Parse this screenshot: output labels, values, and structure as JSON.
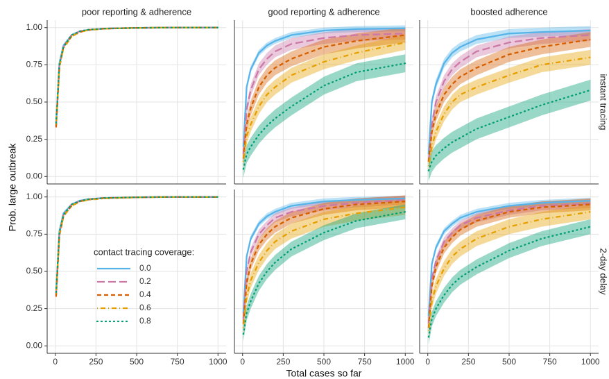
{
  "chart_data": [
    {
      "type": "line",
      "title": "poor reporting & adherence",
      "ylabel": "Prob. large outbreak",
      "x": [
        5,
        25,
        50,
        100,
        150,
        200,
        300,
        500,
        700,
        1000
      ],
      "xlim": [
        -50,
        1050
      ],
      "ylim": [
        -0.05,
        1.05
      ],
      "xticks": [
        0,
        250,
        500,
        750,
        1000
      ],
      "yticks": [
        {
          "value": 0,
          "label": "0.00"
        },
        0.25,
        {
          "value": 0.5,
          "label": "0.50"
        },
        0.75,
        {
          "value": 1,
          "label": "1.00"
        }
      ],
      "grid": true,
      "series": [
        {
          "color": "#56B4E9",
          "linestyle": "solid",
          "values": [
            0.35,
            0.76,
            0.88,
            0.95,
            0.975,
            0.985,
            0.993,
            0.998,
            1.0,
            1.0
          ]
        },
        {
          "color": "#CC79A7",
          "linestyle": "longdash",
          "values": [
            0.34,
            0.74,
            0.87,
            0.95,
            0.975,
            0.985,
            0.993,
            0.998,
            1.0,
            1.0
          ]
        },
        {
          "color": "#D55E00",
          "linestyle": "dashed",
          "values": [
            0.33,
            0.73,
            0.87,
            0.94,
            0.97,
            0.983,
            0.993,
            0.998,
            1.0,
            1.0
          ]
        },
        {
          "color": "#E69F00",
          "linestyle": "dotdash",
          "values": [
            0.35,
            0.74,
            0.86,
            0.94,
            0.97,
            0.983,
            0.992,
            0.998,
            1.0,
            1.0
          ]
        },
        {
          "color": "#009E73",
          "linestyle": "dotted",
          "values": [
            0.36,
            0.75,
            0.87,
            0.95,
            0.975,
            0.985,
            0.993,
            0.998,
            1.0,
            1.0
          ]
        }
      ]
    },
    {
      "type": "line",
      "title": "good reporting & adherence",
      "x": [
        5,
        25,
        50,
        100,
        150,
        200,
        300,
        500,
        700,
        1000
      ],
      "xlim": [
        -50,
        1050
      ],
      "ylim": [
        -0.05,
        1.05
      ],
      "xticks": [
        0,
        250,
        500,
        750,
        1000
      ],
      "yticks": [
        {
          "value": 0,
          "label": "0.00"
        },
        0.25,
        {
          "value": 0.5,
          "label": "0.50"
        },
        0.75,
        {
          "value": 1,
          "label": "1.00"
        }
      ],
      "grid": true,
      "series": [
        {
          "color": "#56B4E9",
          "linestyle": "solid",
          "error": 0.02,
          "values": [
            0.2,
            0.6,
            0.72,
            0.83,
            0.88,
            0.91,
            0.95,
            0.98,
            0.99,
            0.995
          ]
        },
        {
          "color": "#CC79A7",
          "linestyle": "longdash",
          "error": 0.04,
          "values": [
            0.15,
            0.45,
            0.58,
            0.72,
            0.79,
            0.84,
            0.89,
            0.93,
            0.95,
            0.96
          ]
        },
        {
          "color": "#D55E00",
          "linestyle": "dashed",
          "error": 0.05,
          "values": [
            0.12,
            0.35,
            0.46,
            0.6,
            0.68,
            0.73,
            0.79,
            0.87,
            0.91,
            0.95
          ]
        },
        {
          "color": "#E69F00",
          "linestyle": "dotdash",
          "error": 0.05,
          "values": [
            0.1,
            0.27,
            0.35,
            0.47,
            0.55,
            0.6,
            0.68,
            0.77,
            0.83,
            0.9
          ]
        },
        {
          "color": "#009E73",
          "linestyle": "dotted",
          "error": 0.06,
          "values": [
            0.05,
            0.15,
            0.2,
            0.28,
            0.34,
            0.39,
            0.47,
            0.61,
            0.7,
            0.76
          ]
        }
      ]
    },
    {
      "type": "line",
      "title": "boosted adherence",
      "row_label": "instant tracing",
      "x": [
        5,
        25,
        50,
        100,
        150,
        200,
        300,
        500,
        700,
        1000
      ],
      "xlim": [
        -50,
        1050
      ],
      "ylim": [
        -0.05,
        1.05
      ],
      "xticks": [
        0,
        250,
        500,
        750,
        1000
      ],
      "yticks": [
        {
          "value": 0,
          "label": "0.00"
        },
        0.25,
        {
          "value": 0.5,
          "label": "0.50"
        },
        0.75,
        {
          "value": 1,
          "label": "1.00"
        }
      ],
      "grid": true,
      "series": [
        {
          "color": "#56B4E9",
          "linestyle": "solid",
          "error": 0.03,
          "values": [
            0.15,
            0.5,
            0.62,
            0.76,
            0.83,
            0.87,
            0.92,
            0.96,
            0.97,
            0.98
          ]
        },
        {
          "color": "#CC79A7",
          "linestyle": "longdash",
          "error": 0.04,
          "values": [
            0.1,
            0.35,
            0.5,
            0.64,
            0.72,
            0.77,
            0.84,
            0.9,
            0.93,
            0.95
          ]
        },
        {
          "color": "#D55E00",
          "linestyle": "dashed",
          "error": 0.05,
          "values": [
            0.1,
            0.3,
            0.42,
            0.55,
            0.62,
            0.67,
            0.73,
            0.82,
            0.87,
            0.92
          ]
        },
        {
          "color": "#E69F00",
          "linestyle": "dotdash",
          "error": 0.05,
          "values": [
            0.07,
            0.2,
            0.3,
            0.42,
            0.5,
            0.55,
            0.6,
            0.68,
            0.75,
            0.8
          ]
        },
        {
          "color": "#009E73",
          "linestyle": "dotted",
          "error": 0.07,
          "values": [
            0.04,
            0.1,
            0.14,
            0.19,
            0.23,
            0.26,
            0.32,
            0.4,
            0.48,
            0.58
          ]
        }
      ]
    },
    {
      "type": "line",
      "legend_title": "contact tracing coverage:",
      "legend": "bottom-right",
      "x": [
        5,
        25,
        50,
        100,
        150,
        200,
        300,
        500,
        700,
        1000
      ],
      "xlim": [
        -50,
        1050
      ],
      "ylim": [
        -0.05,
        1.05
      ],
      "xticks": [
        0,
        250,
        500,
        750,
        1000
      ],
      "yticks": [
        {
          "value": 0,
          "label": "0.00"
        },
        0.25,
        {
          "value": 0.5,
          "label": "0.50"
        },
        0.75,
        {
          "value": 1,
          "label": "1.00"
        }
      ],
      "grid": true,
      "series": [
        {
          "name": "0.0",
          "color": "#56B4E9",
          "linestyle": "solid",
          "values": [
            0.35,
            0.77,
            0.89,
            0.95,
            0.975,
            0.985,
            0.993,
            0.998,
            1.0,
            1.0
          ]
        },
        {
          "name": "0.2",
          "color": "#CC79A7",
          "linestyle": "longdash",
          "values": [
            0.34,
            0.75,
            0.88,
            0.95,
            0.972,
            0.984,
            0.993,
            0.998,
            1.0,
            1.0
          ]
        },
        {
          "name": "0.4",
          "color": "#D55E00",
          "linestyle": "dashed",
          "values": [
            0.33,
            0.74,
            0.87,
            0.94,
            0.97,
            0.982,
            0.992,
            0.998,
            1.0,
            1.0
          ]
        },
        {
          "name": "0.6",
          "color": "#E69F00",
          "linestyle": "dotdash",
          "values": [
            0.35,
            0.75,
            0.87,
            0.94,
            0.968,
            0.98,
            0.99,
            0.997,
            1.0,
            1.0
          ]
        },
        {
          "name": "0.8",
          "color": "#009E73",
          "linestyle": "dotted",
          "values": [
            0.36,
            0.76,
            0.88,
            0.95,
            0.972,
            0.984,
            0.993,
            0.998,
            1.0,
            1.0
          ]
        }
      ]
    },
    {
      "type": "line",
      "xlabel": "Total cases so far",
      "x": [
        5,
        25,
        50,
        100,
        150,
        200,
        300,
        500,
        700,
        1000
      ],
      "xlim": [
        -50,
        1050
      ],
      "ylim": [
        -0.05,
        1.05
      ],
      "xticks": [
        0,
        250,
        500,
        750,
        1000
      ],
      "yticks": [
        {
          "value": 0,
          "label": "0.00"
        },
        0.25,
        {
          "value": 0.5,
          "label": "0.50"
        },
        0.75,
        {
          "value": 1,
          "label": "1.00"
        }
      ],
      "grid": true,
      "series": [
        {
          "color": "#56B4E9",
          "linestyle": "solid",
          "error": 0.02,
          "values": [
            0.22,
            0.6,
            0.72,
            0.82,
            0.87,
            0.9,
            0.94,
            0.97,
            0.98,
            0.99
          ]
        },
        {
          "color": "#CC79A7",
          "linestyle": "longdash",
          "error": 0.03,
          "values": [
            0.18,
            0.5,
            0.63,
            0.75,
            0.81,
            0.86,
            0.9,
            0.94,
            0.96,
            0.98
          ]
        },
        {
          "color": "#D55E00",
          "linestyle": "dashed",
          "error": 0.04,
          "values": [
            0.15,
            0.42,
            0.55,
            0.68,
            0.75,
            0.8,
            0.86,
            0.92,
            0.95,
            0.97
          ]
        },
        {
          "color": "#E69F00",
          "linestyle": "dotdash",
          "error": 0.05,
          "values": [
            0.12,
            0.33,
            0.44,
            0.56,
            0.64,
            0.7,
            0.77,
            0.85,
            0.89,
            0.93
          ]
        },
        {
          "color": "#009E73",
          "linestyle": "dotted",
          "error": 0.05,
          "values": [
            0.08,
            0.22,
            0.3,
            0.42,
            0.5,
            0.56,
            0.65,
            0.76,
            0.84,
            0.9
          ]
        }
      ]
    },
    {
      "type": "line",
      "row_label": "2-day delay",
      "x": [
        5,
        25,
        50,
        100,
        150,
        200,
        300,
        500,
        700,
        1000
      ],
      "xlim": [
        -50,
        1050
      ],
      "ylim": [
        -0.05,
        1.05
      ],
      "xticks": [
        0,
        250,
        500,
        750,
        1000
      ],
      "yticks": [
        {
          "value": 0,
          "label": "0.00"
        },
        0.25,
        {
          "value": 0.5,
          "label": "0.50"
        },
        0.75,
        {
          "value": 1,
          "label": "1.00"
        }
      ],
      "grid": true,
      "series": [
        {
          "color": "#56B4E9",
          "linestyle": "solid",
          "error": 0.02,
          "values": [
            0.2,
            0.55,
            0.66,
            0.77,
            0.82,
            0.86,
            0.9,
            0.94,
            0.96,
            0.975
          ]
        },
        {
          "color": "#CC79A7",
          "linestyle": "longdash",
          "error": 0.03,
          "values": [
            0.15,
            0.45,
            0.57,
            0.7,
            0.76,
            0.81,
            0.86,
            0.91,
            0.94,
            0.955
          ]
        },
        {
          "color": "#D55E00",
          "linestyle": "dashed",
          "error": 0.04,
          "values": [
            0.12,
            0.4,
            0.53,
            0.66,
            0.73,
            0.78,
            0.84,
            0.9,
            0.93,
            0.95
          ]
        },
        {
          "color": "#E69F00",
          "linestyle": "dotdash",
          "error": 0.05,
          "values": [
            0.1,
            0.3,
            0.4,
            0.52,
            0.6,
            0.65,
            0.72,
            0.8,
            0.85,
            0.9
          ]
        },
        {
          "color": "#009E73",
          "linestyle": "dotted",
          "error": 0.05,
          "values": [
            0.06,
            0.18,
            0.25,
            0.34,
            0.41,
            0.46,
            0.53,
            0.64,
            0.72,
            0.8
          ]
        }
      ]
    }
  ]
}
